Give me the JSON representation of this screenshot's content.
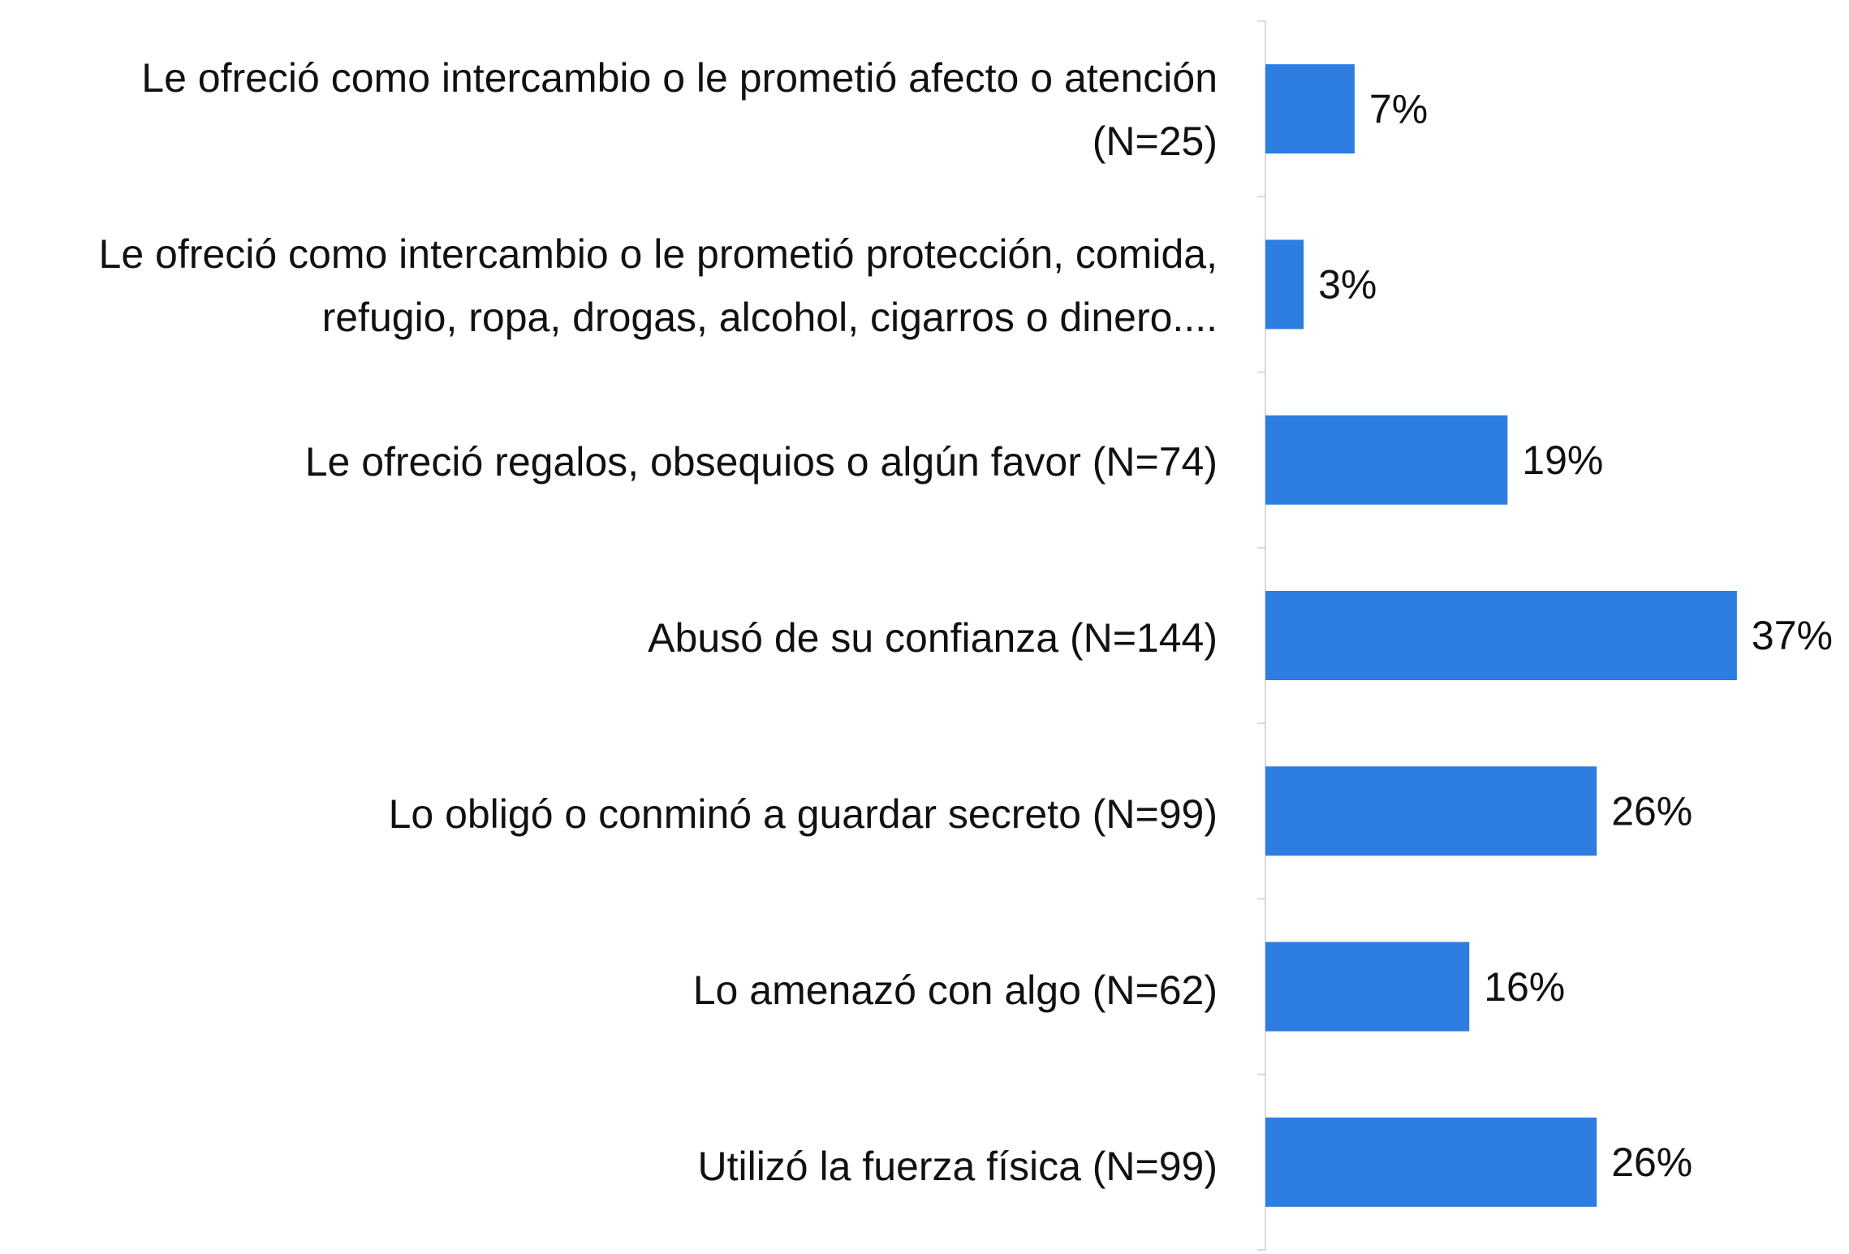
{
  "chart_data": {
    "type": "bar",
    "orientation": "horizontal",
    "categories": [
      "Le ofreció como intercambio o le prometió afecto o atención (N=25)",
      "Le ofreció como intercambio o le prometió protección, comida, refugio, ropa, drogas, alcohol, cigarros o dinero....",
      "Le ofreció regalos, obsequios o algún favor (N=74)",
      "Abusó de su confianza (N=144)",
      "Lo obligó o conminó a guardar secreto (N=99)",
      "Lo amenazó con algo (N=62)",
      "Utilizó la fuerza física (N=99)"
    ],
    "values": [
      7,
      3,
      19,
      37,
      26,
      16,
      26
    ],
    "value_labels": [
      "7%",
      "3%",
      "19%",
      "37%",
      "26%",
      "16%",
      "26%"
    ],
    "color": "#2e7de1"
  }
}
